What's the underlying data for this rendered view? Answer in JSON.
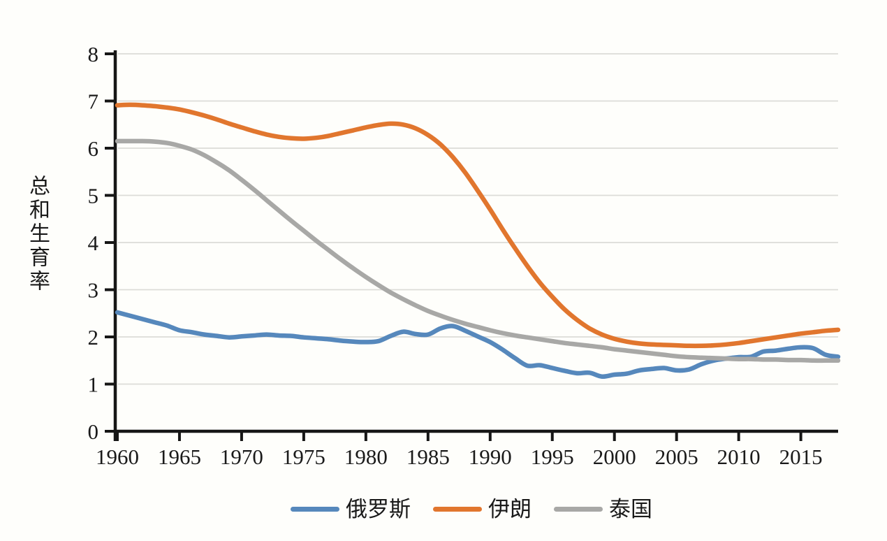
{
  "chart_data": {
    "type": "line",
    "title": "",
    "ylabel": "总和生育率",
    "xlabel": "",
    "ylim": [
      0,
      8
    ],
    "xlim": [
      1960,
      2018
    ],
    "yticks": [
      0,
      1,
      2,
      3,
      4,
      5,
      6,
      7,
      8
    ],
    "xticks": [
      1960,
      1965,
      1970,
      1975,
      1980,
      1985,
      1990,
      1995,
      2000,
      2005,
      2010,
      2015
    ],
    "grid": "horizontal",
    "legend_position": "bottom",
    "line_smoothing": true,
    "x": [
      1960,
      1961,
      1962,
      1963,
      1964,
      1965,
      1966,
      1967,
      1968,
      1969,
      1970,
      1971,
      1972,
      1973,
      1974,
      1975,
      1976,
      1977,
      1978,
      1979,
      1980,
      1981,
      1982,
      1983,
      1984,
      1985,
      1986,
      1987,
      1988,
      1989,
      1990,
      1991,
      1992,
      1993,
      1994,
      1995,
      1996,
      1997,
      1998,
      1999,
      2000,
      2001,
      2002,
      2003,
      2004,
      2005,
      2006,
      2007,
      2008,
      2009,
      2010,
      2011,
      2012,
      2013,
      2014,
      2015,
      2016,
      2017,
      2018
    ],
    "series": [
      {
        "name": "俄罗斯",
        "color": "#5688BC",
        "values": [
          2.52,
          2.45,
          2.38,
          2.31,
          2.24,
          2.14,
          2.1,
          2.05,
          2.02,
          1.99,
          2.01,
          2.03,
          2.05,
          2.03,
          2.02,
          1.99,
          1.97,
          1.95,
          1.92,
          1.9,
          1.89,
          1.91,
          2.02,
          2.11,
          2.06,
          2.05,
          2.18,
          2.23,
          2.13,
          2.01,
          1.89,
          1.73,
          1.55,
          1.39,
          1.4,
          1.34,
          1.28,
          1.23,
          1.24,
          1.16,
          1.2,
          1.22,
          1.29,
          1.32,
          1.34,
          1.29,
          1.31,
          1.42,
          1.5,
          1.54,
          1.57,
          1.58,
          1.69,
          1.71,
          1.75,
          1.78,
          1.76,
          1.62,
          1.58
        ]
      },
      {
        "name": "伊朗",
        "color": "#E1762E",
        "values": [
          6.91,
          6.92,
          6.91,
          6.89,
          6.86,
          6.82,
          6.76,
          6.69,
          6.61,
          6.52,
          6.44,
          6.36,
          6.29,
          6.24,
          6.21,
          6.2,
          6.22,
          6.26,
          6.32,
          6.38,
          6.44,
          6.49,
          6.52,
          6.5,
          6.42,
          6.28,
          6.08,
          5.81,
          5.48,
          5.1,
          4.7,
          4.28,
          3.88,
          3.5,
          3.15,
          2.85,
          2.58,
          2.36,
          2.18,
          2.05,
          1.96,
          1.9,
          1.86,
          1.84,
          1.83,
          1.82,
          1.81,
          1.81,
          1.82,
          1.84,
          1.87,
          1.91,
          1.95,
          1.99,
          2.03,
          2.07,
          2.1,
          2.13,
          2.15
        ]
      },
      {
        "name": "泰国",
        "color": "#A8A8A6",
        "values": [
          6.15,
          6.15,
          6.15,
          6.14,
          6.11,
          6.05,
          5.97,
          5.85,
          5.7,
          5.53,
          5.33,
          5.12,
          4.9,
          4.68,
          4.46,
          4.25,
          4.04,
          3.84,
          3.64,
          3.45,
          3.27,
          3.1,
          2.94,
          2.8,
          2.67,
          2.55,
          2.45,
          2.36,
          2.28,
          2.21,
          2.14,
          2.08,
          2.03,
          1.99,
          1.95,
          1.91,
          1.87,
          1.84,
          1.81,
          1.78,
          1.74,
          1.71,
          1.68,
          1.65,
          1.62,
          1.59,
          1.57,
          1.56,
          1.55,
          1.54,
          1.53,
          1.53,
          1.52,
          1.52,
          1.51,
          1.51,
          1.5,
          1.5,
          1.5
        ]
      }
    ]
  },
  "colors": {
    "axis": "#161616",
    "grid": "#DCDCD8",
    "background": "#FEFEFB",
    "text": "#1A1A1A"
  }
}
